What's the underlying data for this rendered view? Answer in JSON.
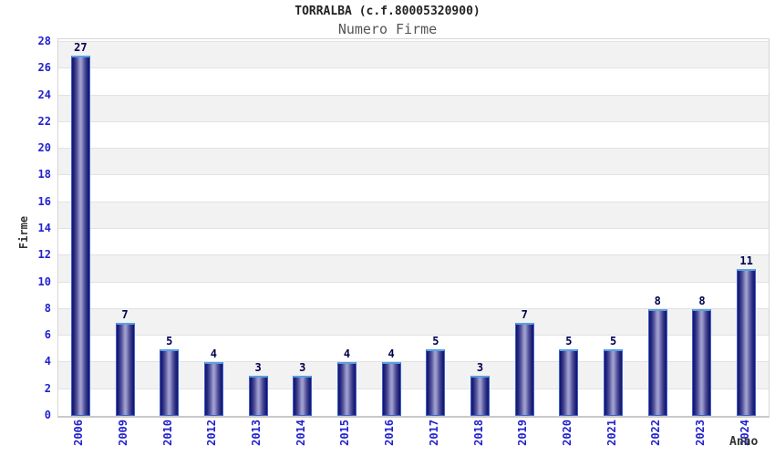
{
  "header": {
    "title": "TORRALBA (c.f.80005320900)",
    "subtitle": "Numero Firme"
  },
  "axes": {
    "y_title": "Firme",
    "x_title": "Anno"
  },
  "colors": {
    "tick_label_blue": "#2222cc",
    "value_label_navy": "#00004d",
    "bar_edge_navy": "#13136a",
    "bar_center_light": "#9c9ccd",
    "bar_outline_blue": "#3c63cc",
    "bar_cap_lightblue": "#58a0e2",
    "band_gray": "#f2f2f2",
    "gridline_gray": "#e2e2e2",
    "plot_border_gray": "#d6d6d6",
    "title_color": "#222222",
    "subtitle_color": "#555555"
  },
  "chart_data": {
    "type": "bar",
    "title": "TORRALBA (c.f.80005320900)",
    "subtitle": "Numero Firme",
    "xlabel": "Anno",
    "ylabel": "Firme",
    "categories": [
      "2006",
      "2009",
      "2010",
      "2012",
      "2013",
      "2014",
      "2015",
      "2016",
      "2017",
      "2018",
      "2019",
      "2020",
      "2021",
      "2022",
      "2023",
      "2024"
    ],
    "values": [
      27,
      7,
      5,
      4,
      3,
      3,
      4,
      4,
      5,
      3,
      7,
      5,
      5,
      8,
      8,
      11
    ],
    "ylim": [
      0,
      28
    ],
    "ytick_step": 2,
    "grid": "horizontal",
    "band_shading": "alternating-2-unit",
    "legend": "none",
    "bar_labels_shown": true,
    "xtick_rotation_deg": 90
  }
}
